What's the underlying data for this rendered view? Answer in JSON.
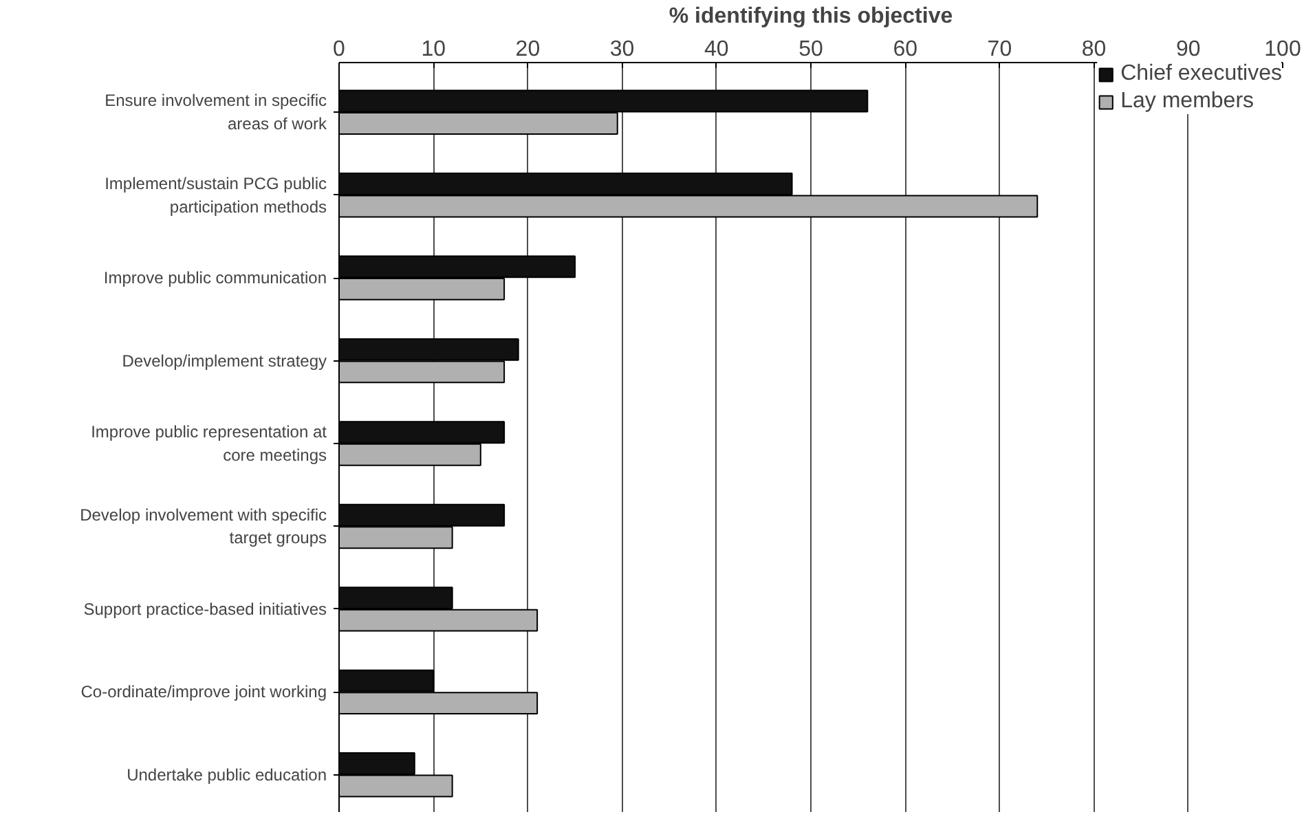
{
  "chart_data": {
    "type": "bar",
    "orientation": "horizontal",
    "xlabel": "% identifying this objective",
    "categories": [
      "Ensure involvement in specific areas of work",
      "Implement/sustain PCG public participation methods",
      "Improve public communication",
      "Develop/implement strategy",
      "Improve public representation at core meetings",
      "Develop involvement with specific target groups",
      "Support practice-based initiatives",
      "Co-ordinate/improve joint working",
      "Undertake public education"
    ],
    "series": [
      {
        "name": "Chief executives",
        "color": "#111111",
        "values": [
          56,
          48,
          25,
          19,
          17.5,
          17.5,
          12,
          10,
          8
        ]
      },
      {
        "name": "Lay members",
        "color": "#b0b0b0",
        "values": [
          29.5,
          74,
          17.5,
          17.5,
          15,
          12,
          21,
          21,
          12
        ]
      }
    ],
    "xlim": [
      0,
      100
    ],
    "xticks": [
      0,
      10,
      20,
      30,
      40,
      50,
      60,
      70,
      80,
      90,
      100
    ],
    "grid": "x",
    "legend": "top right"
  }
}
